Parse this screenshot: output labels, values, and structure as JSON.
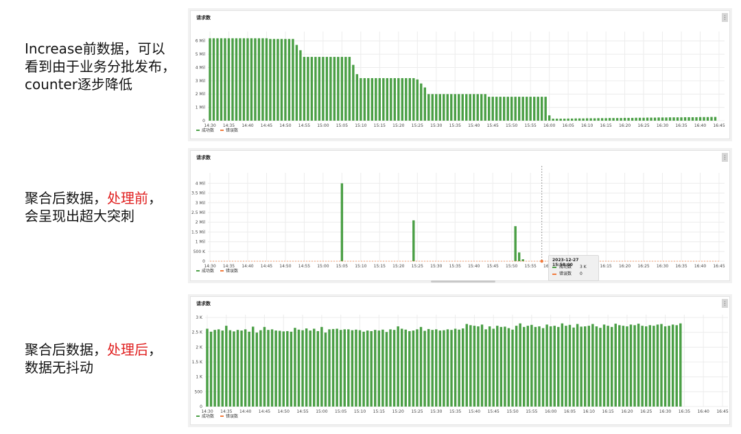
{
  "captions": [
    {
      "lines": [
        [
          {
            "t": "Increase前数据，可以",
            "red": false
          }
        ],
        [
          {
            "t": "看到由于业务分批发布，",
            "red": false
          }
        ],
        [
          {
            "t": "counter逐步降低",
            "red": false
          }
        ]
      ]
    },
    {
      "lines": [
        [
          {
            "t": "聚合后数据，",
            "red": false
          },
          {
            "t": "处理前",
            "red": true
          },
          {
            "t": "，",
            "red": false
          }
        ],
        [
          {
            "t": "会呈现出超大突刺",
            "red": false
          }
        ]
      ]
    },
    {
      "lines": [
        [
          {
            "t": "聚合后数据，",
            "red": false
          },
          {
            "t": "处理后",
            "red": true
          },
          {
            "t": "，",
            "red": false
          }
        ],
        [
          {
            "t": "数据无抖动",
            "red": false
          }
        ]
      ]
    }
  ],
  "panels": [
    {
      "title": "请求数",
      "menu": "⋮"
    },
    {
      "title": "请求数",
      "menu": "⋮"
    },
    {
      "title": "请求数",
      "menu": "⋮"
    }
  ],
  "colors": {
    "success": "#4a9f45",
    "error": "#f2793a",
    "grid": "#ececec",
    "tick": "#444444"
  },
  "tooltip": {
    "title": "2023-12-27 15:58:00",
    "rows": [
      {
        "label": "成功数",
        "value": "3 K",
        "color": "#4a9f45"
      },
      {
        "label": "错误数",
        "value": "0",
        "color": "#f2793a"
      }
    ]
  },
  "chart_data": [
    {
      "type": "bar",
      "title": "请求数",
      "ylim": [
        0,
        6500000
      ],
      "yticks": [
        {
          "v": 0,
          "label": "0"
        },
        {
          "v": 1000000,
          "label": "1 Mil"
        },
        {
          "v": 2000000,
          "label": "2 Mil"
        },
        {
          "v": 3000000,
          "label": "3 Mil"
        },
        {
          "v": 4000000,
          "label": "4 Mil"
        },
        {
          "v": 5000000,
          "label": "5 Mil"
        },
        {
          "v": 6000000,
          "label": "6 Mil"
        }
      ],
      "xticks": [
        "14:30",
        "14:35",
        "14:40",
        "14:45",
        "14:50",
        "14:55",
        "15:00",
        "15:05",
        "15:10",
        "15:15",
        "15:20",
        "15:25",
        "15:30",
        "15:35",
        "15:40",
        "15:45",
        "15:50",
        "15:55",
        "16:00",
        "16:05",
        "16:10",
        "16:15",
        "16:20",
        "16:25",
        "16:30",
        "16:35",
        "16:40",
        "16:45"
      ],
      "x_start": "14:30",
      "x_step_minutes": 1,
      "legend": [
        "成功数",
        "错误数"
      ],
      "legend_position": "bottom-left",
      "series": [
        {
          "name": "成功数",
          "values": [
            6200000,
            6200000,
            6200000,
            6200000,
            6200000,
            6200000,
            6200000,
            6200000,
            6200000,
            6200000,
            6200000,
            6200000,
            6200000,
            6200000,
            6200000,
            6200000,
            6150000,
            6150000,
            6150000,
            6150000,
            6150000,
            6150000,
            6150000,
            5700000,
            5300000,
            4800000,
            4800000,
            4800000,
            4800000,
            4800000,
            4800000,
            4800000,
            4800000,
            4800000,
            4800000,
            4800000,
            4800000,
            4800000,
            4200000,
            3500000,
            3200000,
            3200000,
            3200000,
            3200000,
            3200000,
            3200000,
            3200000,
            3200000,
            3200000,
            3200000,
            3200000,
            3200000,
            3200000,
            3200000,
            3200000,
            3100000,
            2800000,
            2500000,
            2000000,
            2000000,
            2000000,
            2000000,
            2000000,
            2000000,
            2000000,
            2000000,
            2000000,
            2000000,
            2000000,
            2000000,
            2000000,
            2000000,
            2000000,
            2000000,
            1800000,
            1800000,
            1800000,
            1800000,
            1800000,
            1800000,
            1800000,
            1800000,
            1800000,
            1800000,
            1800000,
            1800000,
            1800000,
            1800000,
            1800000,
            1800000,
            400000,
            150000,
            150000,
            150000,
            150000,
            160000,
            160000,
            170000,
            170000,
            170000,
            180000,
            180000,
            180000,
            190000,
            190000,
            190000,
            200000,
            200000,
            200000,
            200000,
            210000,
            210000,
            210000,
            220000,
            220000,
            220000,
            230000,
            230000,
            230000,
            240000,
            240000,
            240000,
            250000,
            250000,
            250000,
            250000,
            260000,
            260000,
            260000,
            260000,
            270000,
            270000,
            270000,
            280000,
            280000
          ]
        },
        {
          "name": "错误数",
          "values": []
        }
      ]
    },
    {
      "type": "bar",
      "title": "请求数",
      "ylim": [
        0,
        4400000
      ],
      "yticks": [
        {
          "v": 0,
          "label": "0"
        },
        {
          "v": 500000,
          "label": "500 K"
        },
        {
          "v": 1000000,
          "label": "1 Mil"
        },
        {
          "v": 1500000,
          "label": "1.5 Mil"
        },
        {
          "v": 2000000,
          "label": "2 Mil"
        },
        {
          "v": 2500000,
          "label": "2.5 Mil"
        },
        {
          "v": 3000000,
          "label": "3 Mil"
        },
        {
          "v": 3500000,
          "label": "3.5 Mil"
        },
        {
          "v": 4000000,
          "label": "4 Mil"
        }
      ],
      "xticks": [
        "14:30",
        "14:35",
        "14:40",
        "14:45",
        "14:50",
        "14:55",
        "15:00",
        "15:05",
        "15:10",
        "15:15",
        "15:20",
        "15:25",
        "15:30",
        "15:35",
        "15:40",
        "15:45",
        "15:50",
        "15:55",
        "16:00",
        "16:05",
        "16:10",
        "16:15",
        "16:20",
        "16:25",
        "16:30",
        "16:35",
        "16:40",
        "16:45"
      ],
      "legend": [
        "成功数",
        "错误数"
      ],
      "legend_position": "bottom-left",
      "series": [
        {
          "name": "成功数",
          "points": [
            {
              "x": "15:05",
              "y": 4000000
            },
            {
              "x": "15:24",
              "y": 2100000
            },
            {
              "x": "15:51",
              "y": 1800000
            },
            {
              "x": "15:52",
              "y": 450000
            },
            {
              "x": "15:53",
              "y": 100000
            }
          ]
        },
        {
          "name": "错误数",
          "points": [
            {
              "x": "15:58",
              "y": 0
            }
          ]
        }
      ],
      "tooltip_x": "15:58"
    },
    {
      "type": "bar",
      "title": "请求数",
      "ylim": [
        0,
        3000
      ],
      "yticks": [
        {
          "v": 0,
          "label": "0"
        },
        {
          "v": 500,
          "label": "500"
        },
        {
          "v": 1000,
          "label": "1 K"
        },
        {
          "v": 1500,
          "label": "1.5 K"
        },
        {
          "v": 2000,
          "label": "2 K"
        },
        {
          "v": 2500,
          "label": "2.5 K"
        },
        {
          "v": 3000,
          "label": "3 K"
        }
      ],
      "xticks": [
        "14:30",
        "14:35",
        "14:40",
        "14:45",
        "14:50",
        "14:55",
        "15:00",
        "15:05",
        "15:10",
        "15:15",
        "15:20",
        "15:25",
        "15:30",
        "15:35",
        "15:40",
        "15:45",
        "15:50",
        "15:55",
        "16:00",
        "16:05",
        "16:10",
        "16:15",
        "16:20",
        "16:25",
        "16:30",
        "16:35",
        "16:40",
        "16:45"
      ],
      "x_start": "14:30",
      "x_step_minutes": 1,
      "legend": [
        "成功数",
        "错误数"
      ],
      "legend_position": "bottom-left",
      "series": [
        {
          "name": "成功数",
          "values": [
            2620,
            2520,
            2580,
            2600,
            2560,
            2720,
            2570,
            2530,
            2580,
            2560,
            2600,
            2520,
            2690,
            2490,
            2570,
            2680,
            2580,
            2600,
            2560,
            2550,
            2530,
            2540,
            2520,
            2650,
            2590,
            2570,
            2630,
            2560,
            2620,
            2540,
            2680,
            2490,
            2600,
            2610,
            2620,
            2580,
            2600,
            2600,
            2570,
            2590,
            2570,
            2520,
            2560,
            2540,
            2580,
            2560,
            2590,
            2510,
            2600,
            2580,
            2700,
            2620,
            2590,
            2540,
            2560,
            2600,
            2680,
            2550,
            2610,
            2580,
            2600,
            2560,
            2570,
            2600,
            2580,
            2620,
            2590,
            2630,
            2780,
            2740,
            2720,
            2700,
            2760,
            2600,
            2700,
            2620,
            2720,
            2680,
            2690,
            2640,
            2590,
            2720,
            2800,
            2680,
            2720,
            2750,
            2680,
            2700,
            2640,
            2760,
            2700,
            2720,
            2680,
            2800,
            2720,
            2750,
            2660,
            2780,
            2690,
            2700,
            2720,
            2780,
            2700,
            2650,
            2760,
            2720,
            2680,
            2790,
            2740,
            2720,
            2700,
            2760,
            2740,
            2790,
            2720,
            2700,
            2740,
            2720,
            2760,
            2780,
            2700,
            2720,
            2760,
            2740,
            2800
          ]
        },
        {
          "name": "错误数",
          "values": []
        }
      ]
    }
  ]
}
